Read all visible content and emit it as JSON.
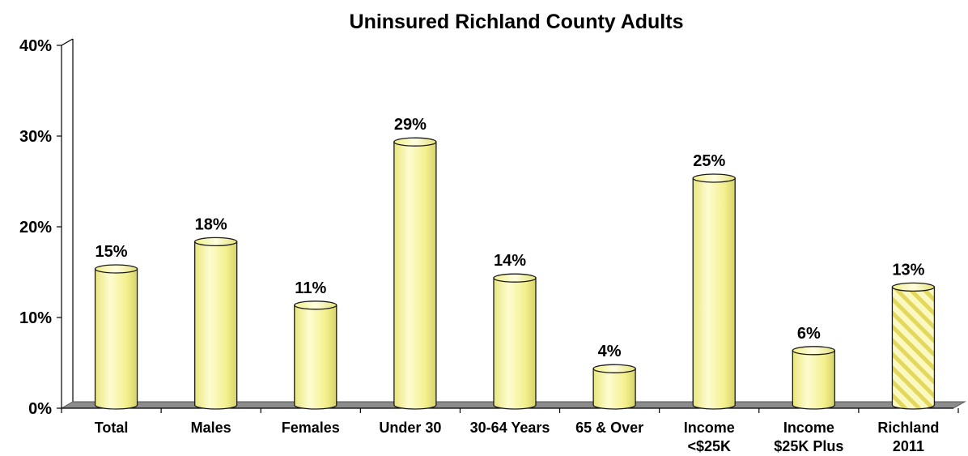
{
  "chart_data": {
    "type": "bar",
    "title": "Uninsured Richland County Adults",
    "xlabel": "",
    "ylabel": "",
    "ylim": [
      0,
      40
    ],
    "yticks": [
      "0%",
      "10%",
      "20%",
      "30%",
      "40%"
    ],
    "grid": false,
    "legend": "none",
    "categories": [
      [
        "Total"
      ],
      [
        "Males"
      ],
      [
        "Females"
      ],
      [
        "Under 30"
      ],
      [
        "30-64 Years"
      ],
      [
        "65 & Over"
      ],
      [
        "Income",
        "<$25K"
      ],
      [
        "Income",
        "$25K Plus"
      ],
      [
        "Richland",
        "2011"
      ]
    ],
    "values": [
      15,
      18,
      11,
      29,
      14,
      4,
      25,
      6,
      13
    ],
    "data_labels": [
      "15%",
      "18%",
      "11%",
      "29%",
      "14%",
      "4%",
      "25%",
      "6%",
      "13%"
    ],
    "colors": {
      "bar": "#f7f59a",
      "bar_highlight": "#fdfcd0",
      "bar_shadow": "#d6d36a",
      "bar_outline": "#1a1a1a",
      "floor": "#8c8c8c",
      "hatch": "#e3d75c"
    },
    "hatched_category_index": 8
  }
}
